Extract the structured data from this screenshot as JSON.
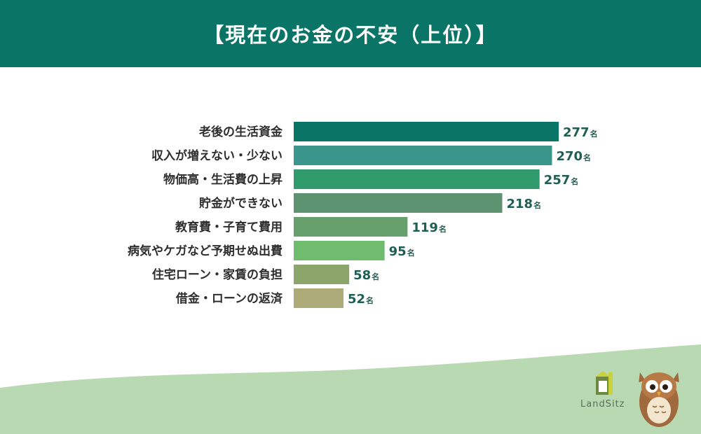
{
  "header": {
    "title": "【現在のお金の不安（上位）】"
  },
  "logo": {
    "text": "LandSitz"
  },
  "colors": {
    "header_bg": "#0a7466",
    "bars": [
      "#0a7466",
      "#3a968a",
      "#2f9a6c",
      "#5e9372",
      "#67a06c",
      "#6fbc6f",
      "#8ca56b",
      "#adab78"
    ],
    "wave": "#b9d9b3"
  },
  "chart_data": {
    "type": "bar",
    "orientation": "horizontal",
    "categories": [
      "老後の生活資金",
      "収入が増えない・少ない",
      "物価高・生活費の上昇",
      "貯金ができない",
      "教育費・子育て費用",
      "病気やケガなど予期せぬ出費",
      "住宅ローン・家賃の負担",
      "借金・ローンの返済"
    ],
    "values": [
      277,
      270,
      257,
      218,
      119,
      95,
      58,
      52
    ],
    "unit": "名",
    "xlim": [
      0,
      277
    ]
  }
}
